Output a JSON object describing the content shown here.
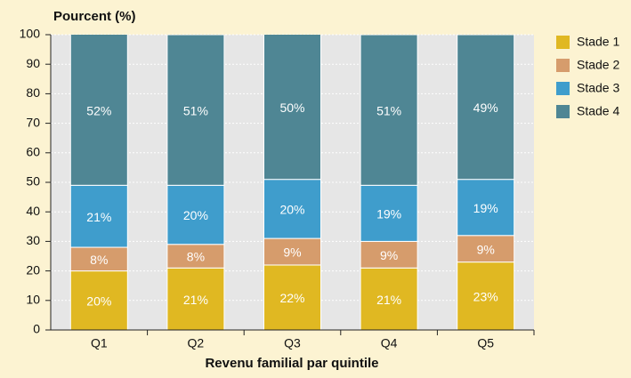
{
  "chart_data": {
    "type": "stacked_bar",
    "y_axis_title": "Pourcent (%)",
    "x_axis_title": "Revenu familial par quintile",
    "categories": [
      "Q1",
      "Q2",
      "Q3",
      "Q4",
      "Q5"
    ],
    "series": [
      {
        "name": "Stade 1",
        "color": "#e0b822",
        "values": [
          20,
          21,
          22,
          21,
          23
        ],
        "value_labels": [
          "20%",
          "21%",
          "22%",
          "21%",
          "23%"
        ]
      },
      {
        "name": "Stade 2",
        "color": "#d69c6c",
        "values": [
          8,
          8,
          9,
          9,
          9
        ],
        "value_labels": [
          "8%",
          "8%",
          "9%",
          "9%",
          "9%"
        ]
      },
      {
        "name": "Stade 3",
        "color": "#3f9dcc",
        "values": [
          21,
          20,
          20,
          19,
          19
        ],
        "value_labels": [
          "21%",
          "20%",
          "20%",
          "19%",
          "19%"
        ]
      },
      {
        "name": "Stade 4",
        "color": "#4f8694",
        "values": [
          52,
          51,
          50,
          51,
          49
        ],
        "value_labels": [
          "52%",
          "51%",
          "50%",
          "51%",
          "49%"
        ]
      }
    ],
    "ylim": [
      0,
      100
    ],
    "yticks": [
      0,
      10,
      20,
      30,
      40,
      50,
      60,
      70,
      80,
      90,
      100
    ],
    "grid": true
  }
}
